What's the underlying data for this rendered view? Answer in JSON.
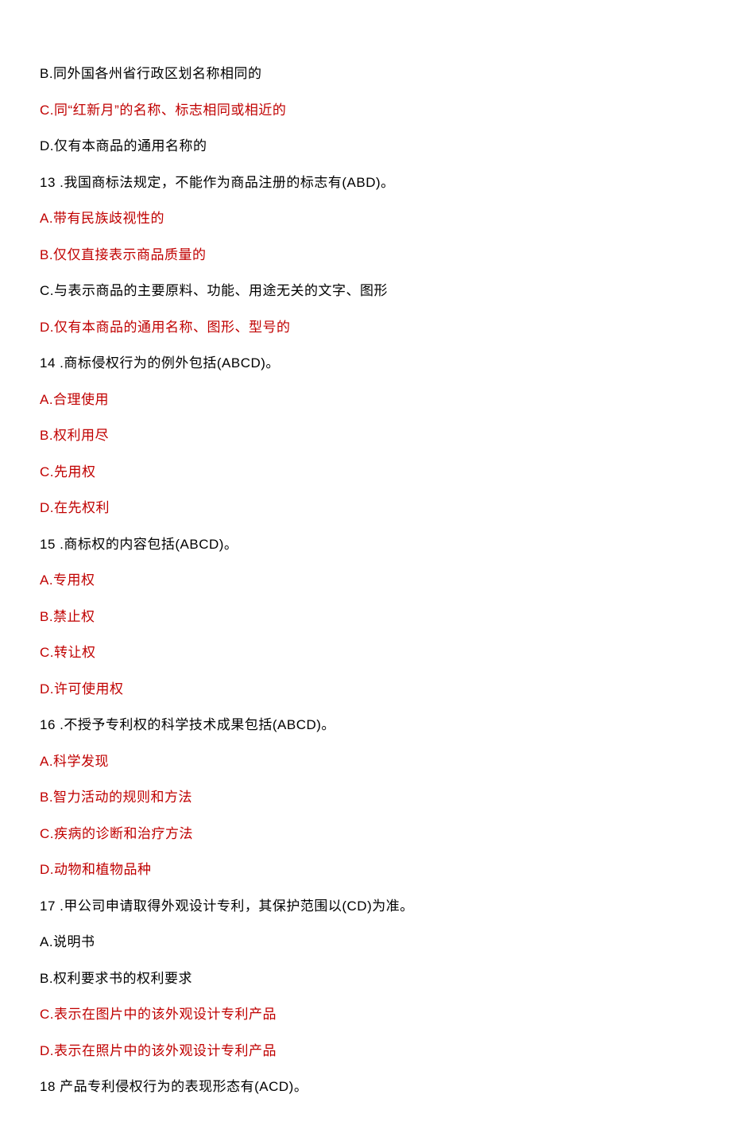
{
  "lines": [
    {
      "text": "B.同外国各州省行政区划名称相同的",
      "color": "black"
    },
    {
      "text": "C.同“红新月”的名称、标志相同或相近的",
      "color": "red"
    },
    {
      "text": "D.仅有本商品的通用名称的",
      "color": "black"
    },
    {
      "text": "13  .我国商标法规定，不能作为商品注册的标志有(ABD)。",
      "color": "black"
    },
    {
      "text": "A.带有民族歧视性的",
      "color": "red"
    },
    {
      "text": "B.仅仅直接表示商品质量的",
      "color": "red"
    },
    {
      "text": "C.与表示商品的主要原料、功能、用途无关的文字、图形",
      "color": "black"
    },
    {
      "text": "D.仅有本商品的通用名称、图形、型号的",
      "color": "red"
    },
    {
      "text": "14  .商标侵权行为的例外包括(ABCD)。",
      "color": "black"
    },
    {
      "text": "A.合理使用",
      "color": "red"
    },
    {
      "text": "B.权利用尽",
      "color": "red"
    },
    {
      "text": "C.先用权",
      "color": "red"
    },
    {
      "text": "D.在先权利",
      "color": "red"
    },
    {
      "text": "15  .商标权的内容包括(ABCD)。",
      "color": "black"
    },
    {
      "text": "A.专用权",
      "color": "red"
    },
    {
      "text": "B.禁止权",
      "color": "red"
    },
    {
      "text": "C.转让权",
      "color": "red"
    },
    {
      "text": "D.许可使用权",
      "color": "red"
    },
    {
      "text": "16  .不授予专利权的科学技术成果包括(ABCD)。",
      "color": "black"
    },
    {
      "text": "A.科学发现",
      "color": "red"
    },
    {
      "text": "B.智力活动的规则和方法",
      "color": "red"
    },
    {
      "text": "C.疾病的诊断和治疗方法",
      "color": "red"
    },
    {
      "text": "D.动物和植物品种",
      "color": "red"
    },
    {
      "text": "17  .甲公司申请取得外观设计专利，其保护范围以(CD)为准。",
      "color": "black"
    },
    {
      "text": "A.说明书",
      "color": "black"
    },
    {
      "text": "B.权利要求书的权利要求",
      "color": "black"
    },
    {
      "text": "C.表示在图片中的该外观设计专利产品",
      "color": "red"
    },
    {
      "text": "D.表示在照片中的该外观设计专利产品",
      "color": "red"
    },
    {
      "text": "18 产品专利侵权行为的表现形态有(ACD)。",
      "color": "black"
    }
  ],
  "styles": {
    "text_color_black": "#000000",
    "text_color_red": "#c00000",
    "background_color": "#ffffff",
    "font_size": 17,
    "line_spacing": 20
  }
}
